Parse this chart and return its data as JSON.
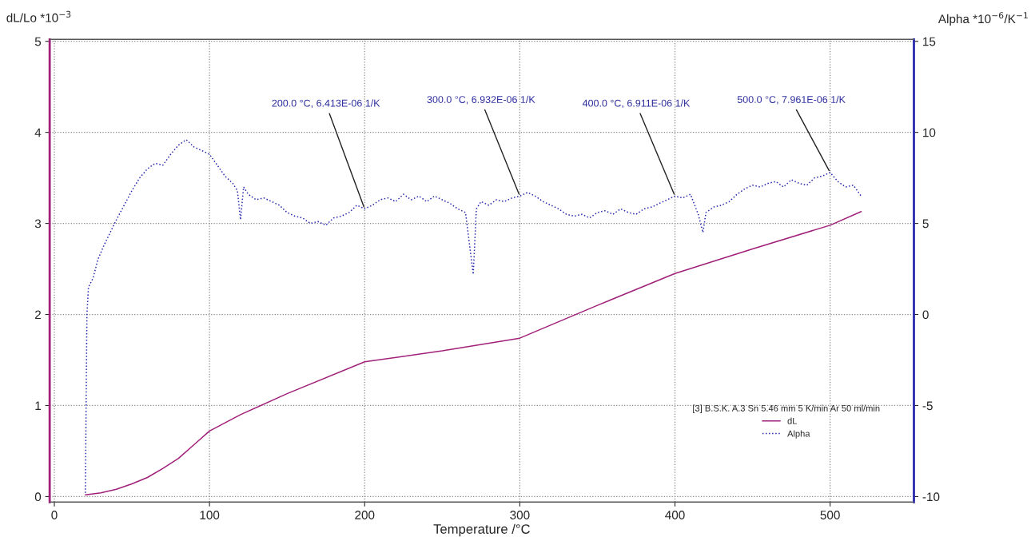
{
  "chart_data": {
    "type": "line",
    "xlabel": "Temperature /°C",
    "ylabel": "dL/Lo *10$^{−3}$",
    "y2label": "Alpha *10$^{−6}$/K$^{−1}$",
    "legend_title": "[3] B.S.K. A.3 Sn 5.46 mm 5 K/min Ar 50 ml/min",
    "xlim": [
      -3,
      554
    ],
    "xticks": [
      0,
      100,
      200,
      300,
      400,
      500
    ],
    "ylim": [
      -0.06,
      5.02
    ],
    "yticks": [
      0,
      1,
      2,
      3,
      4,
      5
    ],
    "y2lim": [
      -10.3,
      15.1
    ],
    "y2ticks": [
      {
        "value": -10,
        "label": "-10"
      },
      {
        "value": -5,
        "label": "-5"
      },
      0,
      5,
      10,
      15
    ],
    "grid": true,
    "legend": "bottom right",
    "series": [
      {
        "name": "dL",
        "color": "#a0207a",
        "line_style": "solid",
        "x": [
          20,
          30,
          40,
          50,
          60,
          70,
          80,
          90,
          100,
          120,
          150,
          200,
          250,
          300,
          350,
          400,
          450,
          500,
          520
        ],
        "values": [
          0.02,
          0.04,
          0.08,
          0.14,
          0.21,
          0.31,
          0.42,
          0.57,
          0.72,
          0.9,
          1.13,
          1.48,
          1.6,
          1.74,
          2.1,
          2.45,
          2.72,
          2.98,
          3.13
        ]
      },
      {
        "name": "Alpha",
        "color": "#2a2ab0",
        "axis": "y2",
        "line_style": "dotted",
        "x": [
          20,
          21,
          22,
          25,
          28,
          32,
          36,
          40,
          45,
          50,
          55,
          60,
          65,
          70,
          75,
          80,
          85,
          90,
          95,
          100,
          105,
          110,
          115,
          118,
          120,
          122,
          125,
          130,
          135,
          140,
          145,
          150,
          155,
          160,
          165,
          170,
          175,
          180,
          185,
          190,
          195,
          200,
          205,
          210,
          215,
          220,
          225,
          230,
          235,
          240,
          245,
          250,
          255,
          260,
          265,
          270,
          272,
          275,
          280,
          285,
          290,
          295,
          300,
          305,
          310,
          315,
          320,
          325,
          330,
          335,
          340,
          345,
          350,
          355,
          360,
          365,
          370,
          375,
          380,
          385,
          390,
          395,
          400,
          405,
          410,
          415,
          418,
          420,
          425,
          430,
          435,
          440,
          445,
          450,
          455,
          460,
          465,
          470,
          475,
          480,
          485,
          490,
          495,
          500,
          505,
          510,
          515,
          520
        ],
        "values": [
          -9.8,
          0.0,
          1.5,
          2.0,
          3.0,
          3.8,
          4.5,
          5.2,
          6.0,
          6.8,
          7.5,
          8.0,
          8.3,
          8.2,
          8.8,
          9.3,
          9.6,
          9.2,
          9.0,
          8.8,
          8.2,
          7.6,
          7.2,
          6.8,
          5.2,
          7.0,
          6.6,
          6.3,
          6.4,
          6.2,
          6.0,
          5.6,
          5.4,
          5.3,
          5.0,
          5.1,
          4.9,
          5.3,
          5.4,
          5.6,
          6.0,
          5.8,
          6.0,
          6.3,
          6.4,
          6.2,
          6.6,
          6.3,
          6.5,
          6.2,
          6.5,
          6.3,
          6.1,
          5.8,
          5.6,
          2.2,
          5.8,
          6.2,
          6.0,
          6.3,
          6.2,
          6.4,
          6.5,
          6.7,
          6.5,
          6.2,
          6.0,
          5.8,
          5.5,
          5.4,
          5.5,
          5.3,
          5.6,
          5.7,
          5.5,
          5.8,
          5.6,
          5.5,
          5.8,
          5.9,
          6.1,
          6.3,
          6.5,
          6.4,
          6.6,
          5.5,
          4.5,
          5.6,
          5.9,
          6.0,
          6.2,
          6.6,
          6.9,
          7.1,
          7.0,
          7.2,
          7.3,
          7.0,
          7.4,
          7.2,
          7.1,
          7.5,
          7.6,
          7.8,
          7.3,
          7.0,
          7.1,
          6.5
        ]
      }
    ],
    "annotations": [
      {
        "text": "200.0 °C, 6.413E-06 1/K",
        "x": 200,
        "y": 3.16
      },
      {
        "text": "300.0 °C, 6.932E-06 1/K",
        "x": 300,
        "y": 3.3
      },
      {
        "text": "400.0 °C, 6.911E-06 1/K",
        "x": 400,
        "y": 3.3
      },
      {
        "text": "500.0 °C, 7.961E-06 1/K",
        "x": 500,
        "y": 3.56
      }
    ]
  }
}
